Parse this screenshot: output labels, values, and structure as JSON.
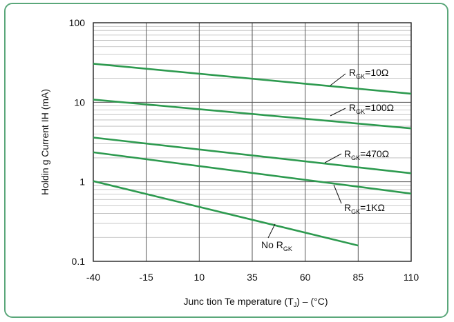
{
  "chart_data": {
    "type": "line",
    "title": "",
    "xlabel_parts": [
      "Junc tion Te mperature (T",
      "J",
      ") –  (°C)"
    ],
    "ylabel": "Holdin g Current  IH (mA)",
    "x_ticks": [
      -40,
      -15,
      10,
      35,
      60,
      85,
      110
    ],
    "y_ticks": [
      "0.1",
      "1",
      "10",
      "100"
    ],
    "xlim": [
      -40,
      110
    ],
    "ylim": [
      0.1,
      100
    ],
    "yscale": "log",
    "grid": true,
    "line_color": "#2d9a4f",
    "series": [
      {
        "label_main": "R",
        "label_sub": "GK",
        "label_suffix": "=10Ω",
        "x": [
          -40,
          110
        ],
        "y": [
          30.5,
          12.8
        ]
      },
      {
        "label_main": "R",
        "label_sub": "GK",
        "label_suffix": "=100Ω",
        "x": [
          -40,
          110
        ],
        "y": [
          10.8,
          4.7
        ]
      },
      {
        "label_main": "R",
        "label_sub": "GK",
        "label_suffix": "=470Ω",
        "x": [
          -40,
          110
        ],
        "y": [
          3.6,
          1.28
        ]
      },
      {
        "label_main": "R",
        "label_sub": "GK",
        "label_suffix": "=1KΩ",
        "x": [
          -40,
          110
        ],
        "y": [
          2.35,
          0.71
        ]
      },
      {
        "label_main": "No R",
        "label_sub": "GK",
        "label_suffix": "",
        "x": [
          -40,
          85
        ],
        "y": [
          1.02,
          0.158
        ]
      }
    ]
  }
}
